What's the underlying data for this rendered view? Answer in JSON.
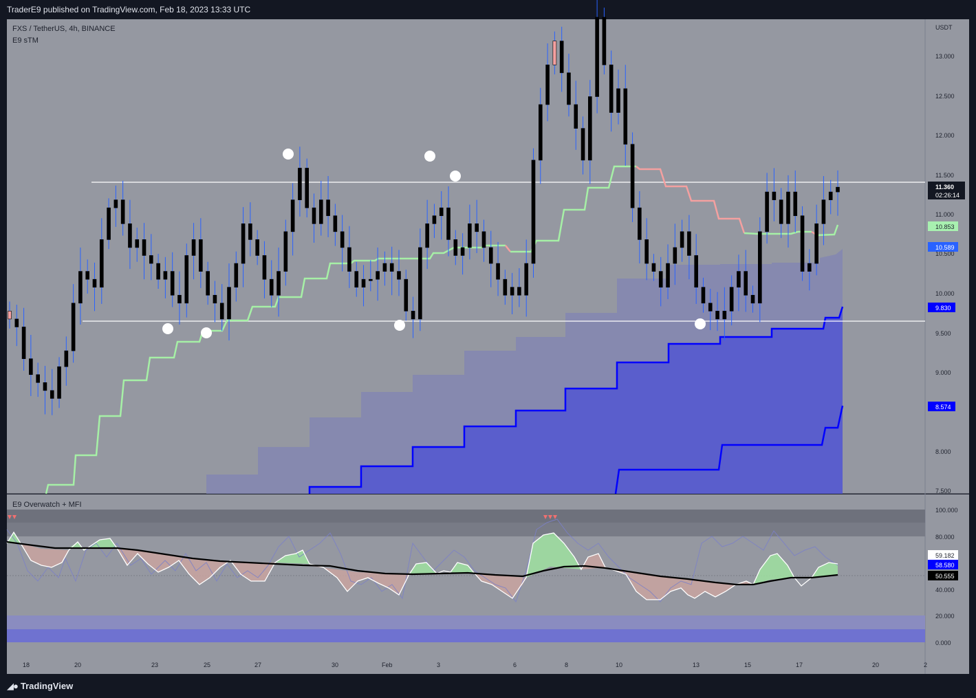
{
  "header": {
    "published": "TraderE9 published on TradingView.com, Feb 18, 2023 13:33 UTC"
  },
  "footer": {
    "brand": "TradingView",
    "brand_icon": "tradingview-logo-icon"
  },
  "main": {
    "symbol": "FXS / TetherUS, 4h, BINANCE",
    "indicator": "E9 sTM",
    "currency": "USDT",
    "price_ticks": [
      "13.000",
      "12.500",
      "12.000",
      "11.500",
      "11.000",
      "10.500",
      "10.000",
      "9.500",
      "9.000",
      "8.000",
      "7.500"
    ],
    "badges": {
      "last_price": "11.360",
      "countdown": "02:26:14",
      "green_line": "10.853",
      "blue_line": "10.589",
      "support_line": "9.830",
      "lower_line": "8.574"
    },
    "resistance_level": 11.36,
    "support_level": 9.61
  },
  "oscillator": {
    "title": "E9 Overwatch + MFI",
    "ticks": [
      "100.000",
      "80.000",
      "40.000",
      "20.000",
      "0.000"
    ],
    "badges": {
      "white": "59.182",
      "blue": "58.580",
      "black": "50.555"
    }
  },
  "x_axis": {
    "labels": [
      "18",
      "20",
      "23",
      "25",
      "27",
      "30",
      "Feb",
      "3",
      "6",
      "8",
      "10",
      "13",
      "15",
      "17",
      "20",
      "2"
    ]
  },
  "colors": {
    "background": "#9598a1",
    "candle": "#000000",
    "candle_up_early": "#f4a0a0",
    "stop_green": "#a6f0a6",
    "stop_red": "#f4a0a0",
    "band_blue": "#0000ff",
    "band_fill": "#5a5ecc",
    "light_band": "#8487b0",
    "wick": "#2962ff",
    "badge_blue": "#2962ff",
    "badge_green": "#a8f0b0"
  },
  "chart_data": {
    "type": "candlestick",
    "timeframe": "4h",
    "ylim": [
      7.5,
      13.5
    ],
    "ohlc_close_approx": [
      9.7,
      9.6,
      9.2,
      9.0,
      8.9,
      8.8,
      8.7,
      9.1,
      9.3,
      9.9,
      10.3,
      10.2,
      10.1,
      10.7,
      11.1,
      11.2,
      10.9,
      10.6,
      10.7,
      10.5,
      10.4,
      10.2,
      10.3,
      10.0,
      9.9,
      10.5,
      10.7,
      10.3,
      10.0,
      9.9,
      9.7,
      10.1,
      10.4,
      10.9,
      10.7,
      10.5,
      10.2,
      10.0,
      10.3,
      10.8,
      11.2,
      11.6,
      11.1,
      10.9,
      11.2,
      11.0,
      10.8,
      10.6,
      10.3,
      10.1,
      10.2,
      10.2,
      10.3,
      10.4,
      10.3,
      10.2,
      9.8,
      9.7,
      10.6,
      10.9,
      11.0,
      11.1,
      10.7,
      10.5,
      10.6,
      10.9,
      10.8,
      10.6,
      10.4,
      10.2,
      10.0,
      10.1,
      10.0,
      10.4,
      11.7,
      12.4,
      12.9,
      13.2,
      12.8,
      12.4,
      12.1,
      11.7,
      12.5,
      13.5,
      12.9,
      12.3,
      12.6,
      11.9,
      11.1,
      10.7,
      10.4,
      10.3,
      10.1,
      10.4,
      10.6,
      10.8,
      10.5,
      10.1,
      9.9,
      9.8,
      9.7,
      9.8,
      10.1,
      10.3,
      10.0,
      9.9,
      10.8,
      11.3,
      11.2,
      10.9,
      11.3,
      11.0,
      10.3,
      10.4,
      10.9,
      11.2,
      11.3,
      11.36
    ],
    "highlighted_points": [
      "swing-high-1",
      "swing-high-2",
      "swing-high-3",
      "swing-low-1",
      "swing-low-2",
      "swing-low-3",
      "swing-low-4"
    ]
  }
}
